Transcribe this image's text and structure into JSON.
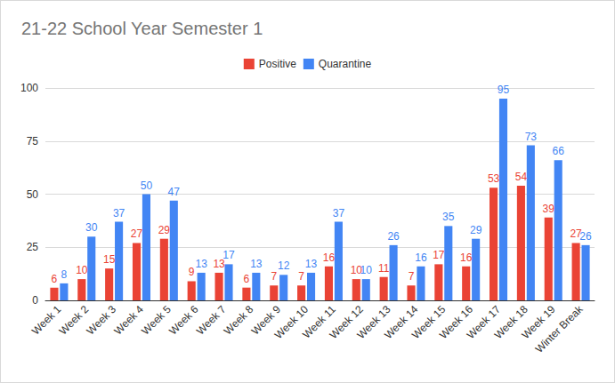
{
  "chart_data": {
    "type": "bar",
    "title": "21-22 School Year Semester 1",
    "categories": [
      "Week 1",
      "Week 2",
      "Week 3",
      "Week 4",
      "Week 5",
      "Week 6",
      "Week 7",
      "Week 8",
      "Week 9",
      "Week 10",
      "Week 11",
      "Week 12",
      "Week 13",
      "Week 14",
      "Week 15",
      "Week 16",
      "Week 17",
      "Week 18",
      "Week 19",
      "Winter Break"
    ],
    "series": [
      {
        "name": "Positive",
        "color": "#ea4335",
        "values": [
          6,
          10,
          15,
          27,
          29,
          9,
          13,
          6,
          7,
          7,
          16,
          10,
          11,
          7,
          17,
          16,
          53,
          54,
          39,
          27
        ]
      },
      {
        "name": "Quarantine",
        "color": "#4285f4",
        "values": [
          8,
          30,
          37,
          50,
          47,
          13,
          17,
          13,
          12,
          13,
          37,
          10,
          26,
          16,
          35,
          29,
          95,
          73,
          66,
          26
        ]
      }
    ],
    "ylim": [
      0,
      100
    ],
    "yticks": [
      0,
      25,
      50,
      75,
      100
    ],
    "grid": true,
    "legend": "top",
    "data_labels": true
  }
}
